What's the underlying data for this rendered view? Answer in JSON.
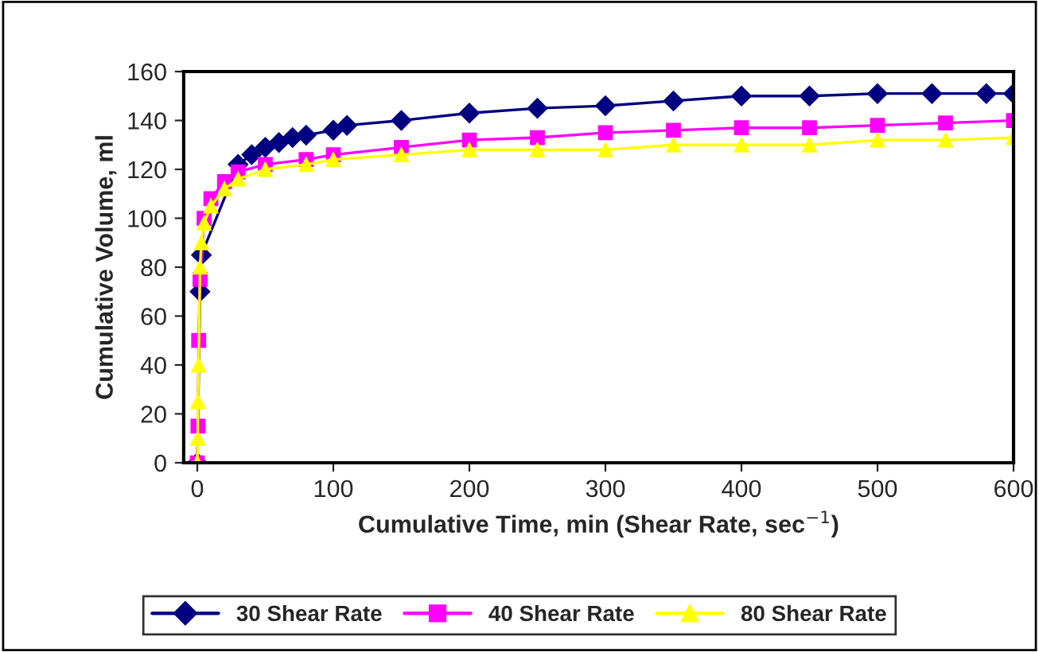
{
  "chart_data": {
    "type": "line",
    "xlabel": "Cumulative Time, min (Shear Rate, sec$^{−1}$)",
    "ylabel": "Cumulative Volume, ml",
    "xlim": [
      -10,
      600
    ],
    "xticks": [
      0,
      100,
      200,
      300,
      400,
      500,
      600
    ],
    "ylim": [
      0,
      160
    ],
    "yticks": [
      0,
      20,
      40,
      60,
      80,
      100,
      120,
      140,
      160
    ],
    "grid": false,
    "legend": "bottom",
    "series": [
      {
        "name": "30 Shear Rate",
        "color": "#000080",
        "marker": "diamond",
        "x": [
          0,
          2,
          3,
          30,
          40,
          50,
          60,
          70,
          80,
          100,
          110,
          150,
          200,
          250,
          300,
          350,
          400,
          450,
          500,
          540,
          580,
          600
        ],
        "values": [
          0,
          70,
          85,
          122,
          126,
          129,
          131,
          133,
          134,
          136,
          138,
          140,
          143,
          145,
          146,
          148,
          150,
          150,
          151,
          151,
          151,
          151
        ]
      },
      {
        "name": "40 Shear Rate",
        "color": "#ff00ff",
        "marker": "square",
        "x": [
          0,
          0.5,
          1,
          2,
          5,
          10,
          20,
          30,
          50,
          80,
          100,
          150,
          200,
          250,
          300,
          350,
          400,
          450,
          500,
          550,
          600
        ],
        "values": [
          0,
          15,
          50,
          75,
          100,
          108,
          115,
          119,
          122,
          124,
          126,
          129,
          132,
          133,
          135,
          136,
          137,
          137,
          138,
          139,
          140
        ]
      },
      {
        "name": "80 Shear Rate",
        "color": "#ffff00",
        "marker": "triangle",
        "x": [
          0,
          0.3,
          0.5,
          1,
          2,
          3,
          5,
          10,
          20,
          30,
          50,
          80,
          100,
          150,
          200,
          250,
          300,
          350,
          400,
          450,
          500,
          550,
          600
        ],
        "values": [
          0,
          10,
          25,
          40,
          80,
          90,
          98,
          105,
          112,
          116,
          120,
          122,
          124,
          126,
          128,
          128,
          128,
          130,
          130,
          130,
          132,
          132,
          133
        ]
      }
    ]
  }
}
